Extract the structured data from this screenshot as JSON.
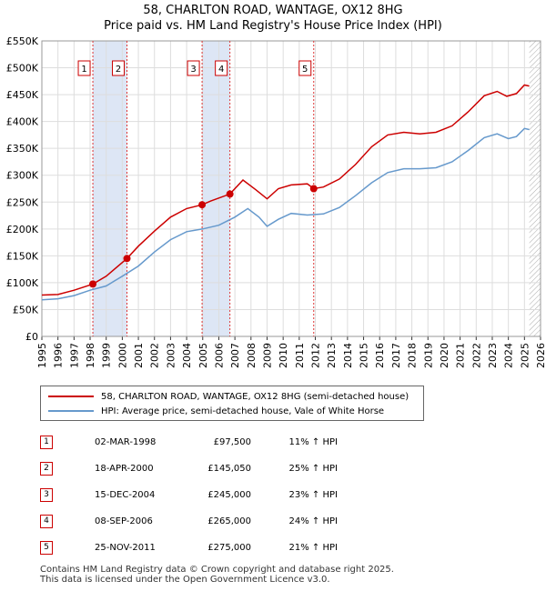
{
  "header": {
    "title_line1": "58, CHARLTON ROAD, WANTAGE, OX12 8HG",
    "title_line2": "Price paid vs. HM Land Registry's House Price Index (HPI)"
  },
  "colors": {
    "property": "#cc0000",
    "hpi": "#6699cc",
    "shade": "#dde6f5",
    "marker_border": "#cc0000",
    "grid": "#dddddd"
  },
  "chart_data": {
    "type": "line",
    "xlim": [
      1995,
      2026
    ],
    "ylim": [
      0,
      550000
    ],
    "yticks": [
      0,
      50000,
      100000,
      150000,
      200000,
      250000,
      300000,
      350000,
      400000,
      450000,
      500000,
      550000
    ],
    "ytick_labels": [
      "£0",
      "£50K",
      "£100K",
      "£150K",
      "£200K",
      "£250K",
      "£300K",
      "£350K",
      "£400K",
      "£450K",
      "£500K",
      "£550K"
    ],
    "xticks": [
      1995,
      1996,
      1997,
      1998,
      1999,
      2000,
      2001,
      2002,
      2003,
      2004,
      2005,
      2006,
      2007,
      2008,
      2009,
      2010,
      2011,
      2012,
      2013,
      2014,
      2015,
      2016,
      2017,
      2018,
      2019,
      2020,
      2021,
      2022,
      2023,
      2024,
      2025,
      2026
    ],
    "shaded_periods": [
      [
        1998.17,
        2000.29
      ],
      [
        2004.96,
        2006.69
      ]
    ],
    "hatch_from": 2025.3,
    "series": [
      {
        "name": "58, CHARLTON ROAD, WANTAGE, OX12 8HG (semi-detached house)",
        "color": "#cc0000",
        "points": [
          [
            1995.0,
            77000
          ],
          [
            1996.0,
            78000
          ],
          [
            1997.0,
            86000
          ],
          [
            1998.17,
            97500
          ],
          [
            1999.0,
            112000
          ],
          [
            2000.29,
            145050
          ],
          [
            2001.0,
            168000
          ],
          [
            2002.0,
            196000
          ],
          [
            2003.0,
            222000
          ],
          [
            2004.0,
            238000
          ],
          [
            2004.96,
            245000
          ],
          [
            2005.5,
            252000
          ],
          [
            2006.69,
            265000
          ],
          [
            2007.5,
            291000
          ],
          [
            2008.3,
            273000
          ],
          [
            2009.0,
            256000
          ],
          [
            2009.7,
            275000
          ],
          [
            2010.5,
            282000
          ],
          [
            2011.5,
            284000
          ],
          [
            2011.9,
            275000
          ],
          [
            2012.5,
            278000
          ],
          [
            2013.5,
            293000
          ],
          [
            2014.5,
            320000
          ],
          [
            2015.5,
            353000
          ],
          [
            2016.5,
            375000
          ],
          [
            2017.5,
            380000
          ],
          [
            2018.5,
            377000
          ],
          [
            2019.5,
            380000
          ],
          [
            2020.5,
            392000
          ],
          [
            2021.5,
            418000
          ],
          [
            2022.5,
            448000
          ],
          [
            2023.3,
            456000
          ],
          [
            2023.9,
            447000
          ],
          [
            2024.5,
            452000
          ],
          [
            2025.0,
            468000
          ],
          [
            2025.3,
            466000
          ]
        ]
      },
      {
        "name": "HPI: Average price, semi-detached house, Vale of White Horse",
        "color": "#6699cc",
        "points": [
          [
            1995.0,
            68000
          ],
          [
            1996.0,
            70000
          ],
          [
            1997.0,
            76000
          ],
          [
            1998.0,
            86000
          ],
          [
            1999.0,
            94000
          ],
          [
            2000.0,
            112000
          ],
          [
            2001.0,
            131000
          ],
          [
            2002.0,
            157000
          ],
          [
            2003.0,
            180000
          ],
          [
            2004.0,
            195000
          ],
          [
            2005.0,
            200000
          ],
          [
            2006.0,
            207000
          ],
          [
            2007.0,
            222000
          ],
          [
            2007.8,
            238000
          ],
          [
            2008.5,
            222000
          ],
          [
            2009.0,
            205000
          ],
          [
            2009.7,
            218000
          ],
          [
            2010.5,
            229000
          ],
          [
            2011.5,
            226000
          ],
          [
            2012.5,
            228000
          ],
          [
            2013.5,
            240000
          ],
          [
            2014.5,
            262000
          ],
          [
            2015.5,
            286000
          ],
          [
            2016.5,
            305000
          ],
          [
            2017.5,
            312000
          ],
          [
            2018.5,
            312000
          ],
          [
            2019.5,
            314000
          ],
          [
            2020.5,
            325000
          ],
          [
            2021.5,
            346000
          ],
          [
            2022.5,
            370000
          ],
          [
            2023.3,
            377000
          ],
          [
            2024.0,
            368000
          ],
          [
            2024.5,
            372000
          ],
          [
            2025.0,
            387000
          ],
          [
            2025.3,
            385000
          ]
        ]
      }
    ],
    "sales": [
      {
        "num": "1",
        "date": "02-MAR-1998",
        "price": "£97,500",
        "pct": "11% ↑ HPI",
        "x": 1998.17,
        "y": 97500
      },
      {
        "num": "2",
        "date": "18-APR-2000",
        "price": "£145,050",
        "pct": "25% ↑ HPI",
        "x": 2000.29,
        "y": 145050
      },
      {
        "num": "3",
        "date": "15-DEC-2004",
        "price": "£245,000",
        "pct": "23% ↑ HPI",
        "x": 2004.96,
        "y": 245000
      },
      {
        "num": "4",
        "date": "08-SEP-2006",
        "price": "£265,000",
        "pct": "24% ↑ HPI",
        "x": 2006.69,
        "y": 265000
      },
      {
        "num": "5",
        "date": "25-NOV-2011",
        "price": "£275,000",
        "pct": "21% ↑ HPI",
        "x": 2011.9,
        "y": 275000
      }
    ]
  },
  "legend": {
    "property_label": "58, CHARLTON ROAD, WANTAGE, OX12 8HG (semi-detached house)",
    "hpi_label": "HPI: Average price, semi-detached house, Vale of White Horse"
  },
  "footer": {
    "line1": "Contains HM Land Registry data © Crown copyright and database right 2025.",
    "line2": "This data is licensed under the Open Government Licence v3.0."
  }
}
